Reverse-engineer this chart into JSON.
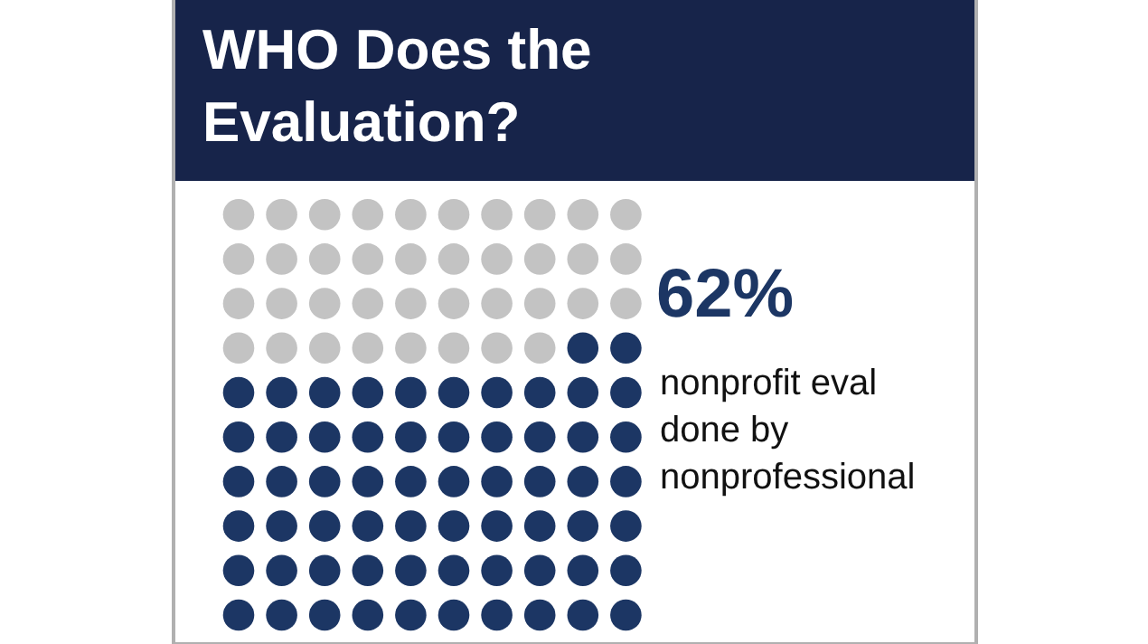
{
  "chart_data": {
    "type": "other",
    "title": "WHO Does the Evaluation?",
    "categories": [
      "nonprofit eval done by nonprofessional"
    ],
    "values": [
      62
    ],
    "colors": [
      "#1c3664"
    ],
    "value_labels": [
      "62%"
    ]
  }
}
